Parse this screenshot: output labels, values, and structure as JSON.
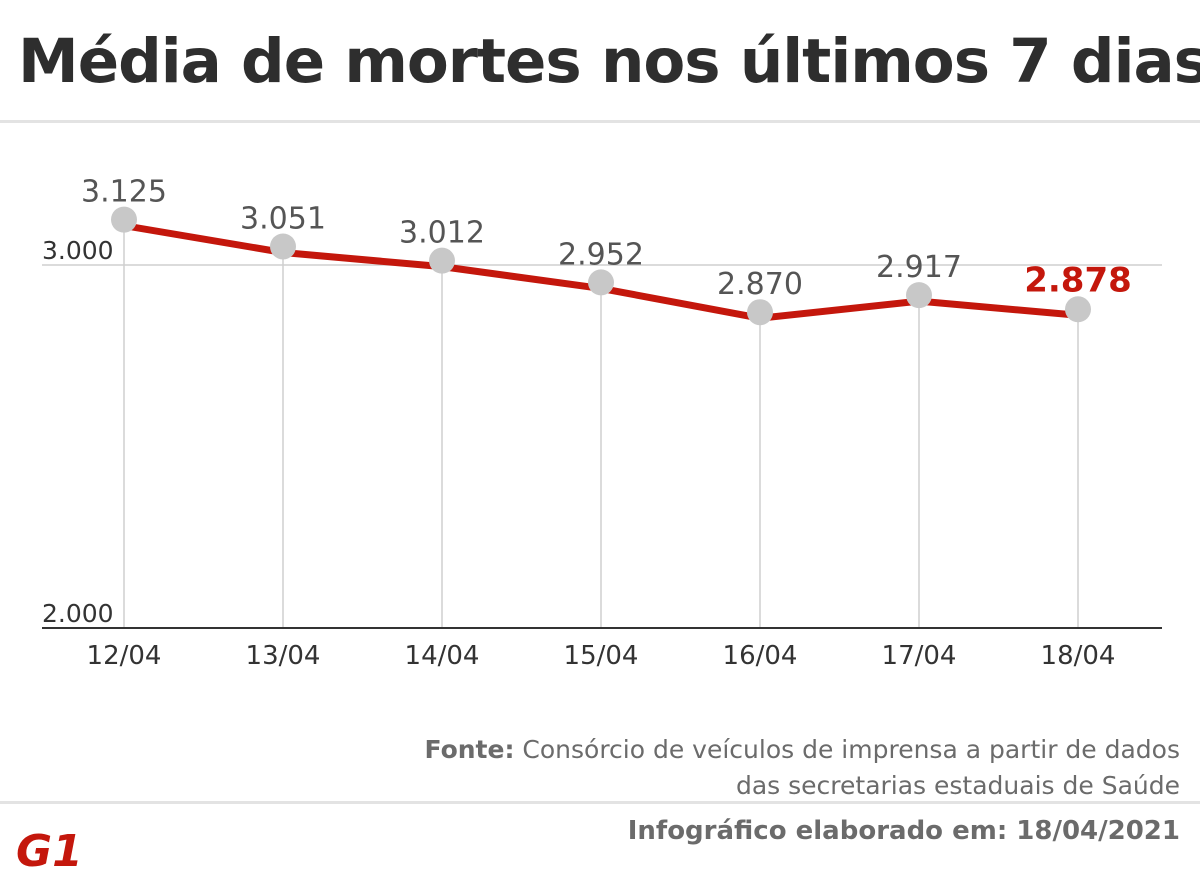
{
  "title": "Média de mortes nos últimos 7 dias",
  "chart_data": {
    "type": "line",
    "categories": [
      "12/04",
      "13/04",
      "14/04",
      "15/04",
      "16/04",
      "17/04",
      "18/04"
    ],
    "values": [
      3125,
      3051,
      3012,
      2952,
      2870,
      2917,
      2878
    ],
    "value_labels": [
      "3.125",
      "3.051",
      "3.012",
      "2.952",
      "2.870",
      "2.917",
      "2.878"
    ],
    "yticks": [
      2000,
      3000
    ],
    "ytick_labels": [
      "2.000",
      "3.000"
    ],
    "ylim": [
      2000,
      3000
    ],
    "line_color": "#c4170c",
    "point_color": "#c8c8c8",
    "highlight_index": 6,
    "highlight_color": "#c4170c"
  },
  "source": {
    "label": "Fonte:",
    "text": "Consórcio de veículos de imprensa a partir de dados das secretarias estaduais de Saúde"
  },
  "credit": "Infográfico elaborado em: 18/04/2021",
  "logo": {
    "text": "G1",
    "color": "#c4170c"
  }
}
